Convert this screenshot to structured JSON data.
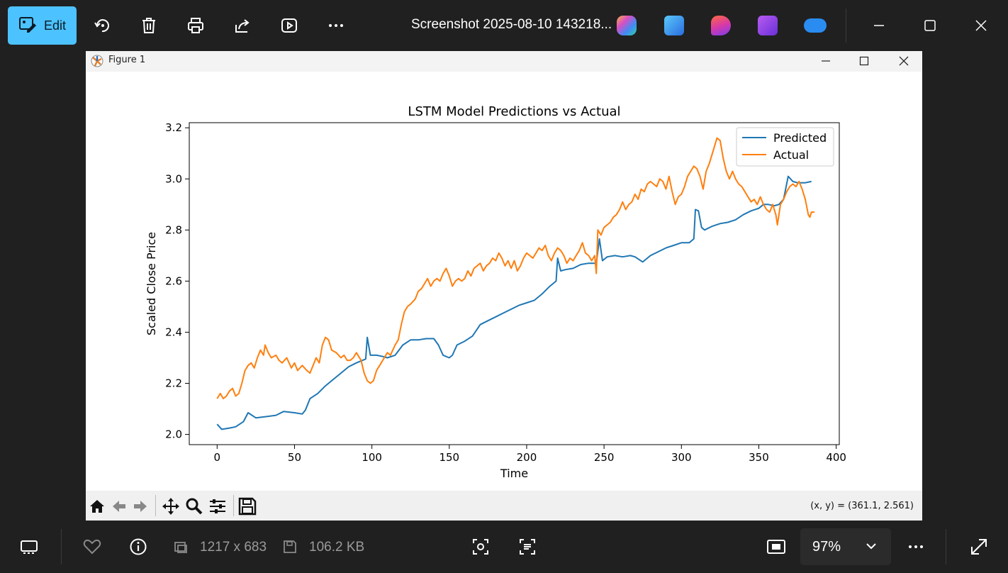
{
  "toolbar": {
    "edit_label": "Edit",
    "file_title": "Screenshot 2025-08-10 143218...",
    "icons": [
      "rotate-icon",
      "delete-icon",
      "print-icon",
      "share-icon",
      "slideshow-icon",
      "more-icon"
    ],
    "apps": [
      "copilot",
      "photos-editor",
      "designer",
      "clipchamp",
      "onedrive"
    ]
  },
  "figure": {
    "window_title": "Figure 1",
    "coord_readout": "(x, y) = (361.1, 2.561)"
  },
  "statusbar": {
    "dimensions": "1217 x 683",
    "file_size": "106.2 KB",
    "zoom": "97%"
  },
  "chart_data": {
    "type": "line",
    "title": "LSTM Model Predictions vs Actual",
    "xlabel": "Time",
    "ylabel": "Scaled Close Price",
    "xlim": [
      -18,
      402
    ],
    "ylim": [
      1.96,
      3.22
    ],
    "xticks": [
      0,
      50,
      100,
      150,
      200,
      250,
      300,
      350,
      400
    ],
    "yticks": [
      2.0,
      2.2,
      2.4,
      2.6,
      2.8,
      3.0,
      3.2
    ],
    "ytick_labels": [
      "2.0",
      "2.2",
      "2.4",
      "2.6",
      "2.8",
      "3.0",
      "3.2"
    ],
    "legend": "top-right",
    "series": [
      {
        "name": "Predicted",
        "color": "#1f77b4",
        "points": [
          [
            0,
            2.04
          ],
          [
            3,
            2.02
          ],
          [
            8,
            2.025
          ],
          [
            12,
            2.03
          ],
          [
            17,
            2.05
          ],
          [
            20,
            2.085
          ],
          [
            25,
            2.065
          ],
          [
            32,
            2.07
          ],
          [
            38,
            2.075
          ],
          [
            43,
            2.09
          ],
          [
            50,
            2.085
          ],
          [
            55,
            2.08
          ],
          [
            57,
            2.095
          ],
          [
            60,
            2.14
          ],
          [
            65,
            2.16
          ],
          [
            70,
            2.19
          ],
          [
            75,
            2.215
          ],
          [
            80,
            2.24
          ],
          [
            85,
            2.265
          ],
          [
            90,
            2.28
          ],
          [
            94,
            2.29
          ],
          [
            96,
            2.295
          ],
          [
            97,
            2.38
          ],
          [
            99,
            2.31
          ],
          [
            103,
            2.31
          ],
          [
            107,
            2.305
          ],
          [
            110,
            2.3
          ],
          [
            115,
            2.31
          ],
          [
            120,
            2.35
          ],
          [
            125,
            2.37
          ],
          [
            130,
            2.37
          ],
          [
            135,
            2.375
          ],
          [
            140,
            2.375
          ],
          [
            143,
            2.35
          ],
          [
            146,
            2.31
          ],
          [
            150,
            2.3
          ],
          [
            152,
            2.31
          ],
          [
            155,
            2.35
          ],
          [
            160,
            2.365
          ],
          [
            165,
            2.385
          ],
          [
            170,
            2.43
          ],
          [
            175,
            2.445
          ],
          [
            180,
            2.46
          ],
          [
            185,
            2.475
          ],
          [
            190,
            2.49
          ],
          [
            195,
            2.505
          ],
          [
            200,
            2.515
          ],
          [
            205,
            2.525
          ],
          [
            210,
            2.55
          ],
          [
            215,
            2.58
          ],
          [
            219,
            2.6
          ],
          [
            220,
            2.69
          ],
          [
            222,
            2.64
          ],
          [
            225,
            2.645
          ],
          [
            230,
            2.65
          ],
          [
            235,
            2.665
          ],
          [
            240,
            2.67
          ],
          [
            245,
            2.67
          ],
          [
            247,
            2.765
          ],
          [
            249,
            2.68
          ],
          [
            252,
            2.695
          ],
          [
            257,
            2.7
          ],
          [
            262,
            2.695
          ],
          [
            267,
            2.7
          ],
          [
            270,
            2.695
          ],
          [
            275,
            2.675
          ],
          [
            280,
            2.7
          ],
          [
            285,
            2.715
          ],
          [
            290,
            2.73
          ],
          [
            295,
            2.74
          ],
          [
            300,
            2.75
          ],
          [
            305,
            2.75
          ],
          [
            308,
            2.765
          ],
          [
            309,
            2.88
          ],
          [
            311,
            2.875
          ],
          [
            313,
            2.81
          ],
          [
            315,
            2.8
          ],
          [
            320,
            2.815
          ],
          [
            325,
            2.825
          ],
          [
            330,
            2.83
          ],
          [
            335,
            2.84
          ],
          [
            340,
            2.86
          ],
          [
            345,
            2.875
          ],
          [
            350,
            2.885
          ],
          [
            353,
            2.9
          ],
          [
            356,
            2.9
          ],
          [
            360,
            2.895
          ],
          [
            363,
            2.9
          ],
          [
            366,
            2.92
          ],
          [
            369,
            3.01
          ],
          [
            372,
            2.99
          ],
          [
            375,
            2.985
          ],
          [
            380,
            2.985
          ],
          [
            384,
            2.99
          ]
        ]
      },
      {
        "name": "Actual",
        "color": "#ff7f0e",
        "points": [
          [
            0,
            2.14
          ],
          [
            2,
            2.16
          ],
          [
            4,
            2.14
          ],
          [
            6,
            2.15
          ],
          [
            8,
            2.17
          ],
          [
            10,
            2.18
          ],
          [
            12,
            2.15
          ],
          [
            14,
            2.16
          ],
          [
            16,
            2.2
          ],
          [
            18,
            2.25
          ],
          [
            20,
            2.27
          ],
          [
            22,
            2.28
          ],
          [
            24,
            2.26
          ],
          [
            26,
            2.3
          ],
          [
            28,
            2.33
          ],
          [
            30,
            2.31
          ],
          [
            31,
            2.35
          ],
          [
            33,
            2.32
          ],
          [
            35,
            2.3
          ],
          [
            38,
            2.31
          ],
          [
            40,
            2.29
          ],
          [
            42,
            2.28
          ],
          [
            45,
            2.3
          ],
          [
            48,
            2.26
          ],
          [
            50,
            2.28
          ],
          [
            52,
            2.25
          ],
          [
            55,
            2.27
          ],
          [
            58,
            2.25
          ],
          [
            60,
            2.24
          ],
          [
            62,
            2.27
          ],
          [
            64,
            2.3
          ],
          [
            66,
            2.28
          ],
          [
            68,
            2.35
          ],
          [
            70,
            2.38
          ],
          [
            72,
            2.37
          ],
          [
            74,
            2.33
          ],
          [
            77,
            2.32
          ],
          [
            80,
            2.3
          ],
          [
            82,
            2.31
          ],
          [
            84,
            2.29
          ],
          [
            86,
            2.29
          ],
          [
            88,
            2.3
          ],
          [
            90,
            2.32
          ],
          [
            93,
            2.29
          ],
          [
            95,
            2.24
          ],
          [
            97,
            2.21
          ],
          [
            99,
            2.2
          ],
          [
            101,
            2.21
          ],
          [
            103,
            2.25
          ],
          [
            105,
            2.27
          ],
          [
            108,
            2.3
          ],
          [
            110,
            2.32
          ],
          [
            112,
            2.31
          ],
          [
            115,
            2.35
          ],
          [
            117,
            2.37
          ],
          [
            119,
            2.43
          ],
          [
            121,
            2.48
          ],
          [
            123,
            2.5
          ],
          [
            125,
            2.51
          ],
          [
            128,
            2.53
          ],
          [
            130,
            2.56
          ],
          [
            132,
            2.57
          ],
          [
            134,
            2.59
          ],
          [
            136,
            2.61
          ],
          [
            138,
            2.58
          ],
          [
            140,
            2.6
          ],
          [
            142,
            2.61
          ],
          [
            144,
            2.6
          ],
          [
            146,
            2.63
          ],
          [
            147,
            2.64
          ],
          [
            148,
            2.65
          ],
          [
            150,
            2.62
          ],
          [
            152,
            2.58
          ],
          [
            154,
            2.6
          ],
          [
            156,
            2.61
          ],
          [
            158,
            2.6
          ],
          [
            160,
            2.61
          ],
          [
            162,
            2.64
          ],
          [
            164,
            2.62
          ],
          [
            166,
            2.65
          ],
          [
            168,
            2.66
          ],
          [
            170,
            2.67
          ],
          [
            172,
            2.64
          ],
          [
            174,
            2.66
          ],
          [
            176,
            2.67
          ],
          [
            178,
            2.69
          ],
          [
            180,
            2.68
          ],
          [
            182,
            2.71
          ],
          [
            184,
            2.69
          ],
          [
            186,
            2.66
          ],
          [
            188,
            2.68
          ],
          [
            190,
            2.65
          ],
          [
            192,
            2.68
          ],
          [
            194,
            2.64
          ],
          [
            196,
            2.66
          ],
          [
            198,
            2.69
          ],
          [
            200,
            2.71
          ],
          [
            202,
            2.7
          ],
          [
            204,
            2.69
          ],
          [
            206,
            2.71
          ],
          [
            208,
            2.73
          ],
          [
            210,
            2.72
          ],
          [
            212,
            2.74
          ],
          [
            214,
            2.7
          ],
          [
            216,
            2.68
          ],
          [
            218,
            2.71
          ],
          [
            220,
            2.73
          ],
          [
            222,
            2.72
          ],
          [
            224,
            2.7
          ],
          [
            226,
            2.67
          ],
          [
            228,
            2.69
          ],
          [
            230,
            2.68
          ],
          [
            232,
            2.7
          ],
          [
            234,
            2.72
          ],
          [
            236,
            2.75
          ],
          [
            238,
            2.71
          ],
          [
            240,
            2.7
          ],
          [
            242,
            2.68
          ],
          [
            244,
            2.7
          ],
          [
            245,
            2.63
          ],
          [
            246,
            2.8
          ],
          [
            248,
            2.78
          ],
          [
            250,
            2.81
          ],
          [
            252,
            2.82
          ],
          [
            254,
            2.83
          ],
          [
            256,
            2.85
          ],
          [
            258,
            2.86
          ],
          [
            260,
            2.88
          ],
          [
            262,
            2.91
          ],
          [
            264,
            2.88
          ],
          [
            266,
            2.9
          ],
          [
            268,
            2.91
          ],
          [
            270,
            2.94
          ],
          [
            272,
            2.92
          ],
          [
            274,
            2.96
          ],
          [
            276,
            2.95
          ],
          [
            278,
            2.98
          ],
          [
            280,
            2.99
          ],
          [
            282,
            2.98
          ],
          [
            284,
            2.97
          ],
          [
            286,
            3.0
          ],
          [
            288,
            2.99
          ],
          [
            290,
            2.96
          ],
          [
            292,
            3.01
          ],
          [
            294,
            2.95
          ],
          [
            296,
            2.9
          ],
          [
            298,
            2.93
          ],
          [
            300,
            2.94
          ],
          [
            302,
            2.97
          ],
          [
            304,
            3.01
          ],
          [
            306,
            3.03
          ],
          [
            308,
            3.05
          ],
          [
            310,
            3.04
          ],
          [
            312,
            3.01
          ],
          [
            314,
            2.96
          ],
          [
            316,
            3.03
          ],
          [
            318,
            3.06
          ],
          [
            320,
            3.1
          ],
          [
            322,
            3.14
          ],
          [
            323,
            3.16
          ],
          [
            325,
            3.15
          ],
          [
            327,
            3.08
          ],
          [
            329,
            3.03
          ],
          [
            331,
            3.0
          ],
          [
            333,
            3.03
          ],
          [
            335,
            3.0
          ],
          [
            337,
            2.98
          ],
          [
            339,
            2.97
          ],
          [
            341,
            2.95
          ],
          [
            343,
            2.93
          ],
          [
            345,
            2.91
          ],
          [
            347,
            2.92
          ],
          [
            349,
            2.9
          ],
          [
            351,
            2.93
          ],
          [
            353,
            2.9
          ],
          [
            355,
            2.88
          ],
          [
            357,
            2.87
          ],
          [
            359,
            2.9
          ],
          [
            361,
            2.86
          ],
          [
            362,
            2.82
          ],
          [
            364,
            2.9
          ],
          [
            366,
            2.92
          ],
          [
            368,
            2.95
          ],
          [
            370,
            2.97
          ],
          [
            372,
            2.98
          ],
          [
            374,
            2.97
          ],
          [
            376,
            2.99
          ],
          [
            378,
            2.96
          ],
          [
            380,
            2.92
          ],
          [
            382,
            2.86
          ],
          [
            383,
            2.85
          ],
          [
            384,
            2.87
          ],
          [
            386,
            2.87
          ]
        ]
      }
    ]
  }
}
